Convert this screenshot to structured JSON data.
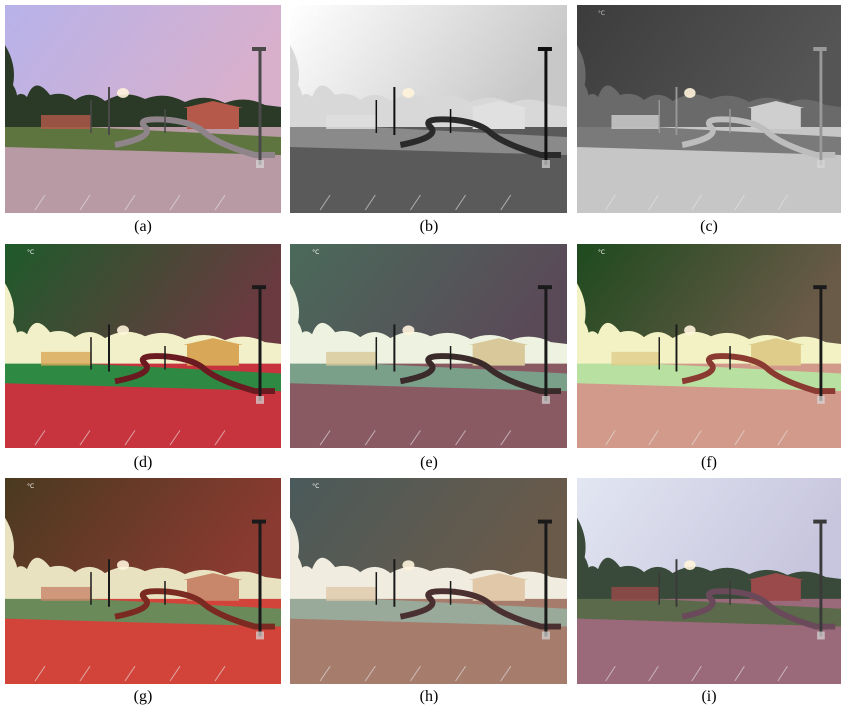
{
  "figure": {
    "captions": [
      "(a)",
      "(b)",
      "(c)",
      "(d)",
      "(e)",
      "(f)",
      "(g)",
      "(h)",
      "(i)"
    ],
    "thermal_marker": "°C"
  },
  "panels": [
    {
      "id": "a",
      "kind": "visible-color",
      "sky": [
        "#b7b2ea",
        "#d8b0cc"
      ],
      "ground": "#b89aa5",
      "trees": "#2a3a26",
      "building": "#b55a4a",
      "pole": "#4a4a4a",
      "road": "#8f8489",
      "grass": "#5f7540"
    },
    {
      "id": "b",
      "kind": "thermal-gray-hot",
      "sky": [
        "#ffffff",
        "#c8c8c8"
      ],
      "ground": "#5a5a5a",
      "trees": "#d8d8d8",
      "building": "#e0e0e0",
      "pole": "#111111",
      "road": "#2a2a2a",
      "grass": "#8a8a8a"
    },
    {
      "id": "c",
      "kind": "thermal-gray-cold",
      "sky": [
        "#3c3c3c",
        "#555555"
      ],
      "ground": "#c6c6c6",
      "trees": "#6a6a6a",
      "building": "#cfcfcf",
      "pole": "#999999",
      "road": "#bdbdbd",
      "grass": "#7a7a7a"
    },
    {
      "id": "d",
      "kind": "fusion-1",
      "sky": [
        "#1e5a2a",
        "#6a3a40"
      ],
      "ground": "#c8343e",
      "trees": "#f2f0c8",
      "building": "#d8a858",
      "pole": "#1a1a1a",
      "road": "#6a1a20",
      "grass": "#2e8a42"
    },
    {
      "id": "e",
      "kind": "fusion-2",
      "sky": [
        "#4a6a5a",
        "#5a4a58"
      ],
      "ground": "#8a5a62",
      "trees": "#eef2e0",
      "building": "#d8c89a",
      "pole": "#1a1a1a",
      "road": "#3a2a2a",
      "grass": "#7aa08a"
    },
    {
      "id": "f",
      "kind": "fusion-3",
      "sky": [
        "#1e4a1e",
        "#6a5a48"
      ],
      "ground": "#d29a8a",
      "trees": "#f2f2c4",
      "building": "#e0cc8a",
      "pole": "#1a1a1a",
      "road": "#8a3a30",
      "grass": "#b8e0a0"
    },
    {
      "id": "g",
      "kind": "fusion-4",
      "sky": [
        "#4a3a20",
        "#8a3a30"
      ],
      "ground": "#d2443a",
      "trees": "#e8e2c0",
      "building": "#c8866a",
      "pole": "#1a1a1a",
      "road": "#7a2a20",
      "grass": "#6a8a5a"
    },
    {
      "id": "h",
      "kind": "fusion-5",
      "sky": [
        "#4a5a5a",
        "#6a5a4a"
      ],
      "ground": "#a67c6c",
      "trees": "#f0ece0",
      "building": "#e0c8a8",
      "pole": "#1a1a1a",
      "road": "#4a3030",
      "grass": "#9aaa9a"
    },
    {
      "id": "i",
      "kind": "fusion-6",
      "sky": [
        "#e2e6f2",
        "#c8c6de"
      ],
      "ground": "#9a6a7a",
      "trees": "#3a4a3a",
      "building": "#9a4a4a",
      "pole": "#3a3a3a",
      "road": "#6a4a5a",
      "grass": "#5a6a4a"
    }
  ]
}
